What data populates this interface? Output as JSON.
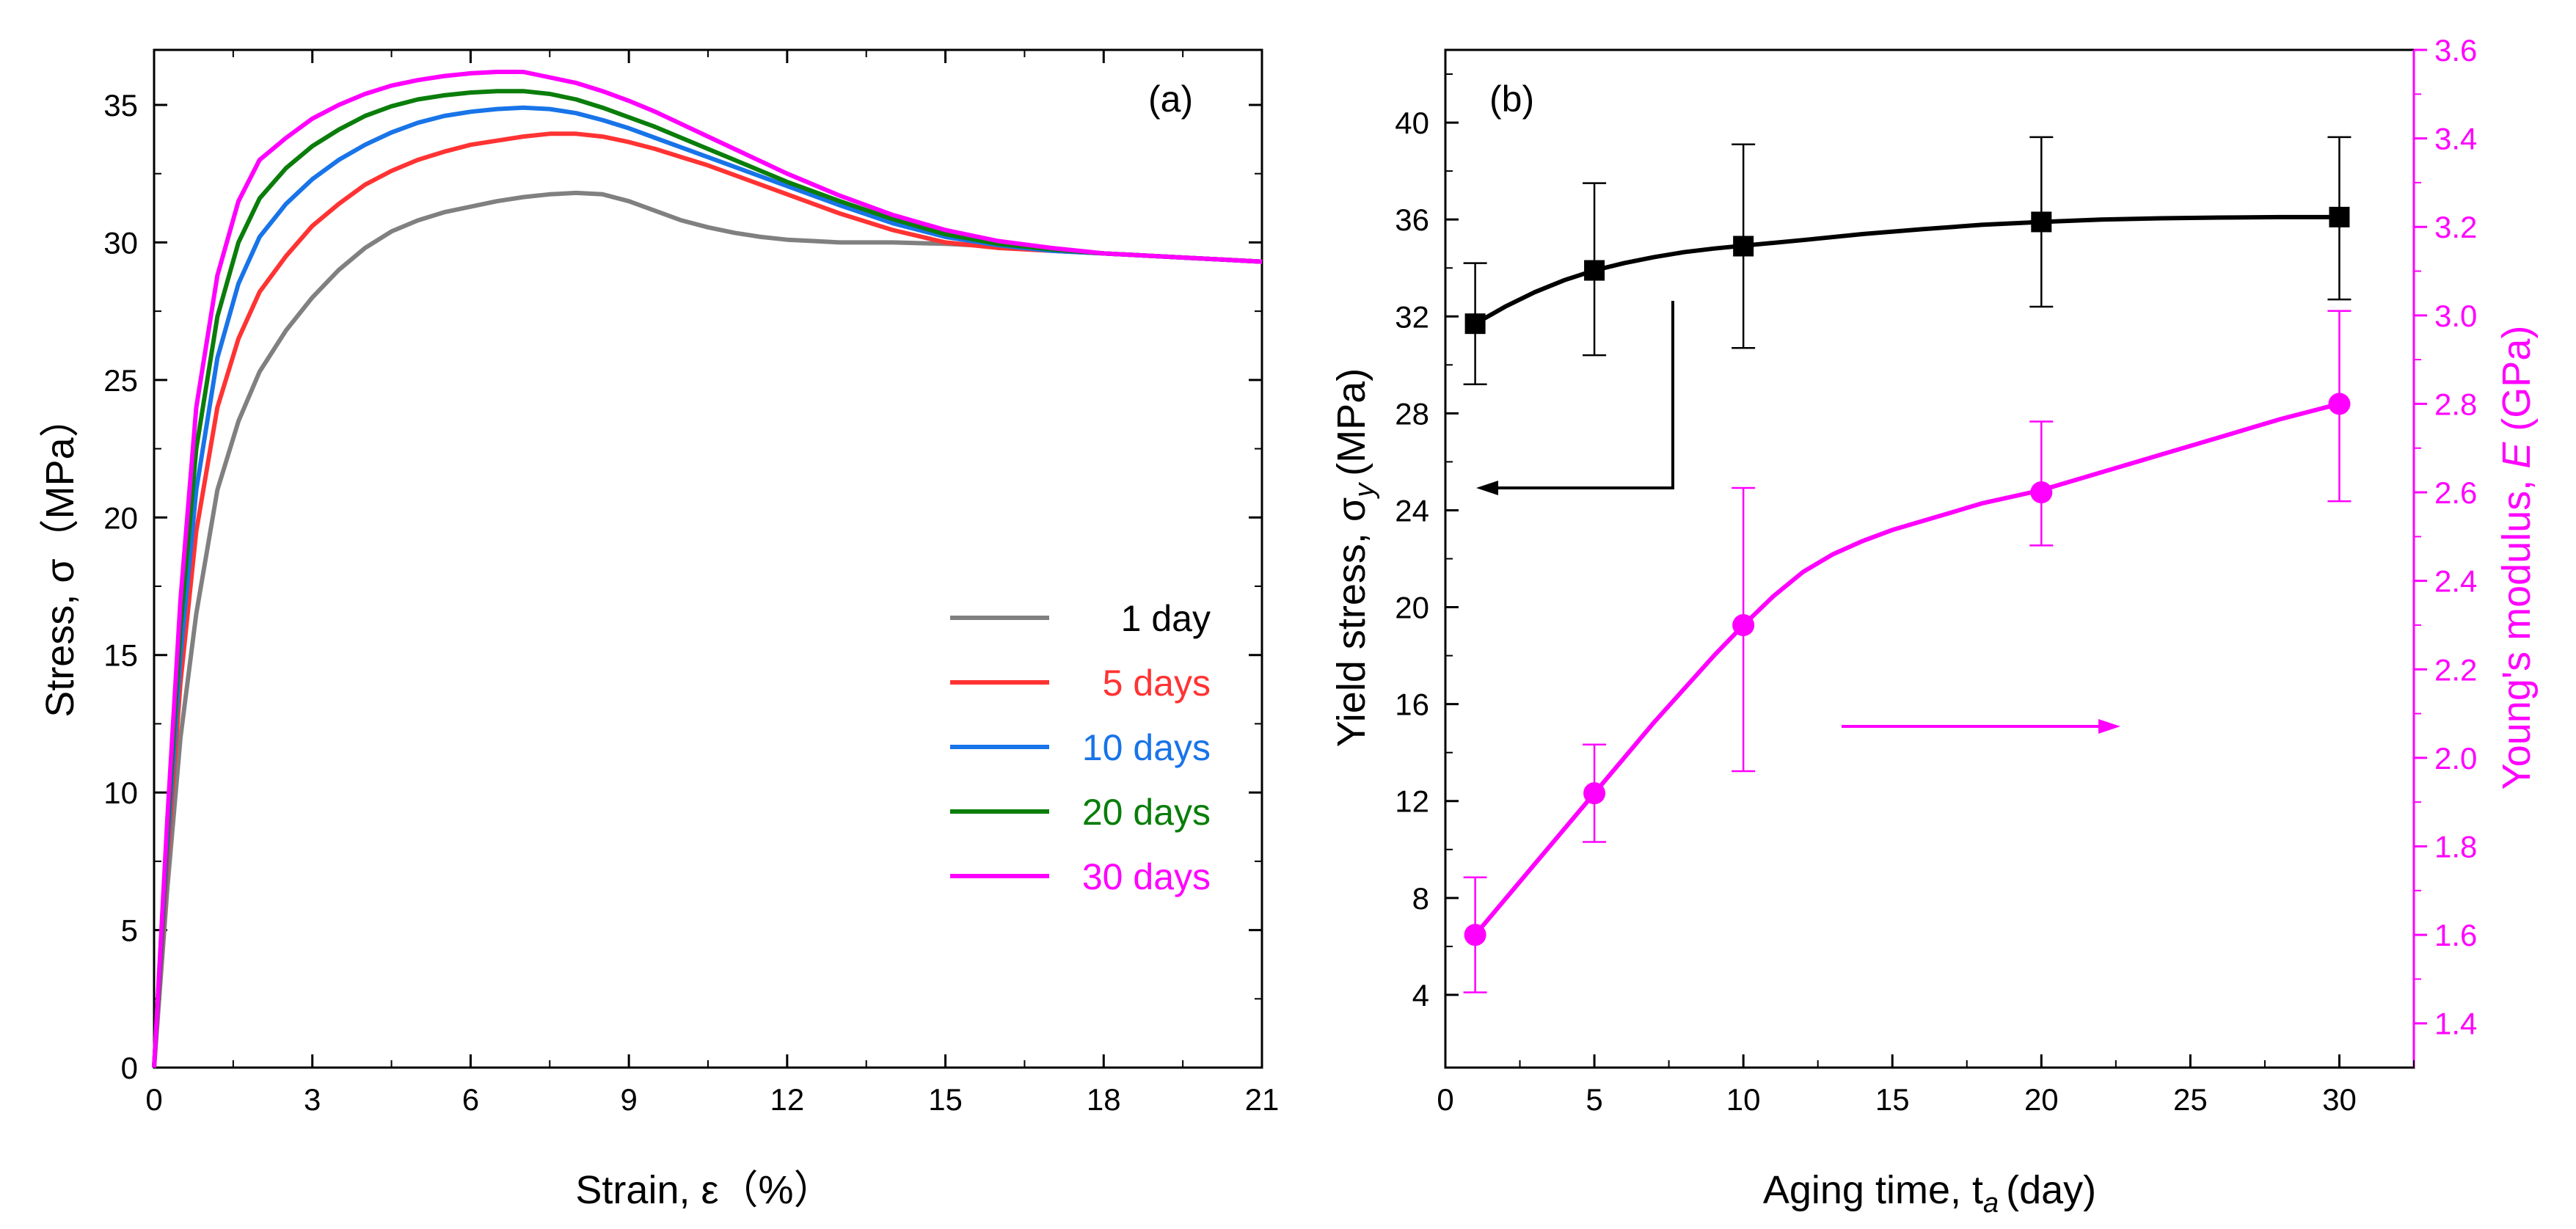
{
  "chart_data": [
    {
      "panel": "(a)",
      "type": "line",
      "xlabel": "Strain, ε（%）",
      "ylabel": "Stress, σ（MPa）",
      "xlim": [
        0,
        21
      ],
      "ylim": [
        0,
        37
      ],
      "xticks": [
        "0",
        "3",
        "6",
        "9",
        "12",
        "15",
        "18",
        "21"
      ],
      "yticks": [
        "0",
        "5",
        "10",
        "15",
        "20",
        "25",
        "30",
        "35"
      ],
      "legend_position": "bottom-right",
      "series": [
        {
          "name": "1 day",
          "color": "#808080",
          "x": [
            0,
            0.25,
            0.5,
            0.8,
            1.2,
            1.6,
            2,
            2.5,
            3,
            3.5,
            4,
            4.5,
            5,
            5.5,
            6,
            6.5,
            7,
            7.5,
            8,
            8.5,
            9,
            9.5,
            10,
            10.5,
            11,
            11.5,
            12,
            12.5,
            13,
            14,
            15,
            16,
            17,
            18,
            19,
            20,
            21
          ],
          "y": [
            0,
            6.5,
            12,
            16.5,
            21,
            23.5,
            25.3,
            26.8,
            28,
            29,
            29.8,
            30.4,
            30.8,
            31.1,
            31.3,
            31.5,
            31.65,
            31.75,
            31.8,
            31.75,
            31.5,
            31.15,
            30.8,
            30.55,
            30.35,
            30.2,
            30.1,
            30.05,
            30,
            30,
            29.95,
            29.85,
            29.75,
            29.6,
            29.5,
            29.4,
            29.3
          ]
        },
        {
          "name": "5 days",
          "color": "#ff3333",
          "x": [
            0,
            0.25,
            0.5,
            0.8,
            1.2,
            1.6,
            2,
            2.5,
            3,
            3.5,
            4,
            4.5,
            5,
            5.5,
            6,
            6.5,
            7,
            7.5,
            8,
            8.5,
            9,
            9.5,
            10,
            10.5,
            11,
            11.5,
            12,
            12.5,
            13,
            14,
            15,
            16,
            17,
            18,
            19,
            20,
            21
          ],
          "y": [
            0,
            7.5,
            14,
            19.5,
            24,
            26.5,
            28.2,
            29.5,
            30.6,
            31.4,
            32.1,
            32.6,
            33,
            33.3,
            33.55,
            33.7,
            33.85,
            33.95,
            33.95,
            33.85,
            33.65,
            33.4,
            33.1,
            32.8,
            32.45,
            32.1,
            31.75,
            31.4,
            31.05,
            30.45,
            30,
            29.8,
            29.7,
            29.6,
            29.5,
            29.4,
            29.3
          ]
        },
        {
          "name": "10 days",
          "color": "#1874e8",
          "x": [
            0,
            0.25,
            0.5,
            0.8,
            1.2,
            1.6,
            2,
            2.5,
            3,
            3.5,
            4,
            4.5,
            5,
            5.5,
            6,
            6.5,
            7,
            7.5,
            8,
            8.5,
            9,
            9.5,
            10,
            10.5,
            11,
            11.5,
            12,
            12.5,
            13,
            14,
            15,
            16,
            17,
            18,
            19,
            20,
            21
          ],
          "y": [
            0,
            8,
            15,
            21,
            25.8,
            28.5,
            30.2,
            31.4,
            32.3,
            33,
            33.55,
            34,
            34.35,
            34.6,
            34.75,
            34.85,
            34.9,
            34.85,
            34.7,
            34.45,
            34.15,
            33.8,
            33.45,
            33.1,
            32.75,
            32.4,
            32.05,
            31.7,
            31.35,
            30.7,
            30.2,
            29.9,
            29.7,
            29.6,
            29.5,
            29.4,
            29.3
          ]
        },
        {
          "name": "20 days",
          "color": "#0a7d0a",
          "x": [
            0,
            0.25,
            0.5,
            0.8,
            1.2,
            1.6,
            2,
            2.5,
            3,
            3.5,
            4,
            4.5,
            5,
            5.5,
            6,
            6.5,
            7,
            7.5,
            8,
            8.5,
            9,
            9.5,
            10,
            10.5,
            11,
            11.5,
            12,
            12.5,
            13,
            14,
            15,
            16,
            17,
            18,
            19,
            20,
            21
          ],
          "y": [
            0,
            8.5,
            16,
            22.5,
            27.3,
            30,
            31.6,
            32.7,
            33.5,
            34.1,
            34.6,
            34.95,
            35.2,
            35.35,
            35.45,
            35.5,
            35.5,
            35.4,
            35.2,
            34.9,
            34.55,
            34.2,
            33.8,
            33.4,
            33,
            32.6,
            32.2,
            31.85,
            31.5,
            30.85,
            30.3,
            29.95,
            29.75,
            29.6,
            29.5,
            29.4,
            29.3
          ]
        },
        {
          "name": "30 days",
          "color": "#ff00ff",
          "x": [
            0,
            0.25,
            0.5,
            0.8,
            1.2,
            1.6,
            2,
            2.5,
            3,
            3.5,
            4,
            4.5,
            5,
            5.5,
            6,
            6.5,
            7,
            7.5,
            8,
            8.5,
            9,
            9.5,
            10,
            10.5,
            11,
            11.5,
            12,
            12.5,
            13,
            14,
            15,
            16,
            17,
            18,
            19,
            20,
            21
          ],
          "y": [
            0,
            9,
            17,
            24,
            28.8,
            31.5,
            33,
            33.8,
            34.5,
            35,
            35.4,
            35.7,
            35.9,
            36.05,
            36.15,
            36.2,
            36.2,
            36,
            35.8,
            35.5,
            35.15,
            34.75,
            34.3,
            33.85,
            33.4,
            32.95,
            32.5,
            32.1,
            31.7,
            31,
            30.45,
            30.05,
            29.8,
            29.6,
            29.5,
            29.4,
            29.3
          ]
        }
      ]
    },
    {
      "panel": "(b)",
      "type": "scatter",
      "xlabel": "Aging time, t",
      "xlabel_sub": "a",
      "xlabel_tail": "(day)",
      "ylabel_left": "Yield stress, σ",
      "ylabel_left_sub": "y",
      "ylabel_left_tail": "(MPa)",
      "ylabel_right": "Young's modulus, ",
      "ylabel_right_italic": "E",
      "ylabel_right_tail": " (GPa)",
      "xlim": [
        0,
        32.5
      ],
      "ylim_left": [
        1.0,
        43.0
      ],
      "ylim_right": [
        1.3,
        3.6
      ],
      "xticks": [
        "0",
        "5",
        "10",
        "15",
        "20",
        "25",
        "30"
      ],
      "yticks_left": [
        "4",
        "8",
        "12",
        "16",
        "20",
        "24",
        "28",
        "32",
        "36",
        "40"
      ],
      "yticks_right": [
        "1.4",
        "1.6",
        "1.8",
        "2.0",
        "2.2",
        "2.4",
        "2.6",
        "2.8",
        "3.0",
        "3.2",
        "3.4",
        "3.6"
      ],
      "series": [
        {
          "name": "Yield stress",
          "axis": "left",
          "color": "#000000",
          "marker": "square",
          "x": [
            1,
            5,
            10,
            20,
            30
          ],
          "y": [
            31.7,
            33.9,
            34.9,
            35.9,
            36.1
          ],
          "err_low": [
            29.2,
            30.4,
            30.7,
            32.4,
            32.7
          ],
          "err_high": [
            34.2,
            37.5,
            39.1,
            39.4,
            39.4
          ],
          "fit_x": [
            1,
            2,
            3,
            4,
            5,
            6,
            7,
            8,
            9,
            10,
            12,
            14,
            16,
            18,
            20,
            22,
            24,
            26,
            28,
            30
          ],
          "fit_y": [
            31.7,
            32.4,
            33,
            33.5,
            33.9,
            34.2,
            34.45,
            34.65,
            34.8,
            34.92,
            35.15,
            35.4,
            35.6,
            35.78,
            35.9,
            36,
            36.05,
            36.08,
            36.1,
            36.1
          ]
        },
        {
          "name": "Young's modulus",
          "axis": "right",
          "color": "#ff00ff",
          "marker": "circle",
          "x": [
            1,
            5,
            10,
            20,
            30
          ],
          "y": [
            1.6,
            1.92,
            2.3,
            2.6,
            2.8
          ],
          "err_low": [
            1.47,
            1.81,
            1.97,
            2.48,
            2.58
          ],
          "err_high": [
            1.73,
            2.03,
            2.61,
            2.76,
            3.01
          ],
          "fit_x": [
            1,
            3,
            5,
            7,
            9,
            10,
            11,
            12,
            13,
            14,
            15,
            16,
            17,
            18,
            19,
            20,
            22,
            24,
            26,
            28,
            30
          ],
          "fit_y": [
            1.6,
            1.76,
            1.92,
            2.08,
            2.23,
            2.3,
            2.365,
            2.42,
            2.46,
            2.49,
            2.515,
            2.535,
            2.555,
            2.575,
            2.59,
            2.605,
            2.645,
            2.685,
            2.725,
            2.765,
            2.8
          ]
        }
      ],
      "annotations": [
        "left arrow points to Yield stress axis",
        "right arrow points to Young's modulus axis"
      ]
    }
  ]
}
